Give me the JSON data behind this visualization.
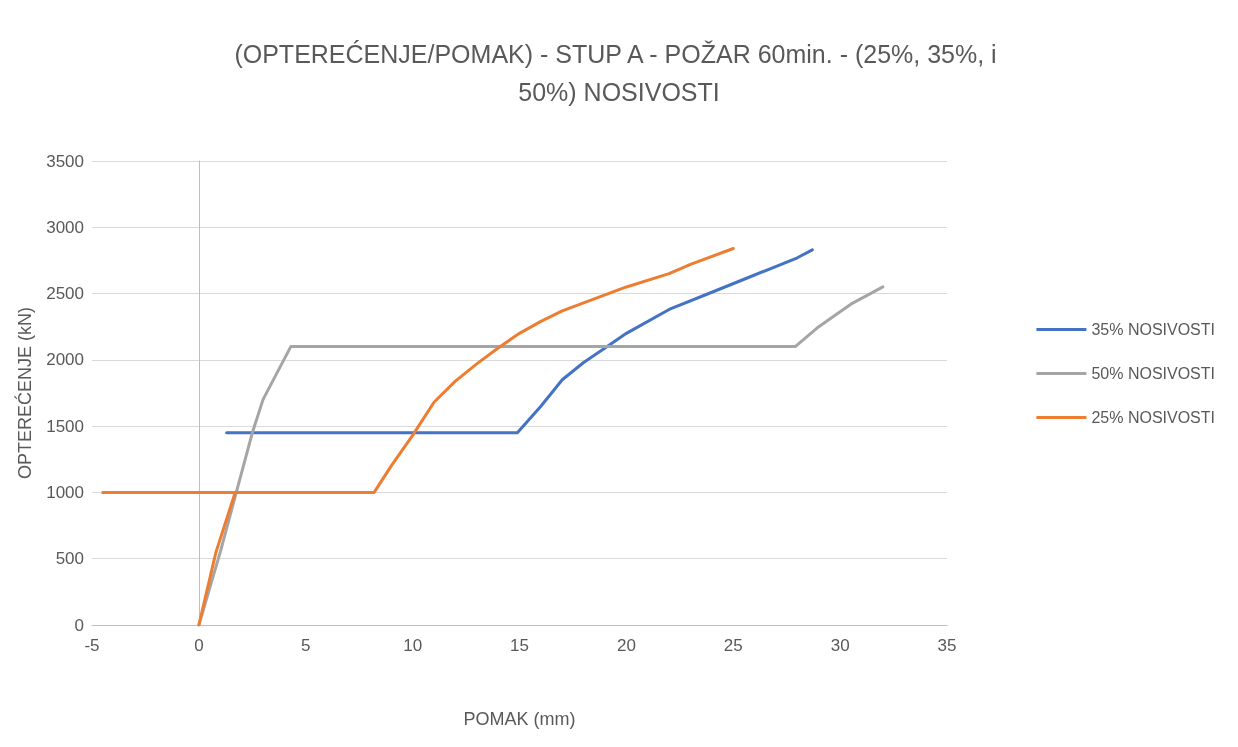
{
  "chart_data": {
    "type": "line",
    "title": "(OPTEREĆENJE/POMAK) - STUP A - POŽAR 60min. - (25%, 35%, i 50%) NOSIVOSTI",
    "xlabel": "POMAK (mm)",
    "ylabel": "OPTEREĆENJE (kN)",
    "xlim": [
      -5,
      35
    ],
    "xticks": [
      -5,
      0,
      5,
      10,
      15,
      20,
      25,
      30,
      35
    ],
    "ylim": [
      0,
      3500
    ],
    "yticks": [
      0,
      500,
      1000,
      1500,
      2000,
      2500,
      3000,
      3500
    ],
    "grid": "y",
    "legend": "right",
    "marker": "none",
    "line_style": "solid",
    "series": [
      {
        "name": "35% NOSIVOSTI",
        "color": "#4472c4",
        "x": [
          1.3,
          14.9,
          16,
          17,
          18,
          19,
          20,
          22,
          24,
          26,
          28,
          28.7
        ],
        "values": [
          1450,
          1450,
          1650,
          1850,
          1980,
          2090,
          2200,
          2380,
          2510,
          2640,
          2770,
          2830
        ]
      },
      {
        "name": "50% NOSIVOSTI",
        "color": "#a5a5a5",
        "x": [
          0,
          1,
          1.5,
          2.5,
          3,
          4.3,
          27.9,
          29,
          30.5,
          32
        ],
        "values": [
          0,
          550,
          850,
          1450,
          1700,
          2100,
          2100,
          2250,
          2420,
          2550
        ]
      },
      {
        "name": "25% NOSIVOSTI",
        "color": "#ed7d31",
        "x": [
          0,
          0.8,
          1.7,
          -4.5,
          8.2,
          9,
          10,
          11,
          12,
          13,
          14,
          15,
          16,
          17,
          18,
          20,
          22,
          23,
          25
        ],
        "values": [
          0,
          550,
          1000,
          1000,
          1000,
          1200,
          1430,
          1680,
          1840,
          1970,
          2090,
          2200,
          2290,
          2370,
          2430,
          2550,
          2650,
          2720,
          2840
        ]
      }
    ]
  }
}
